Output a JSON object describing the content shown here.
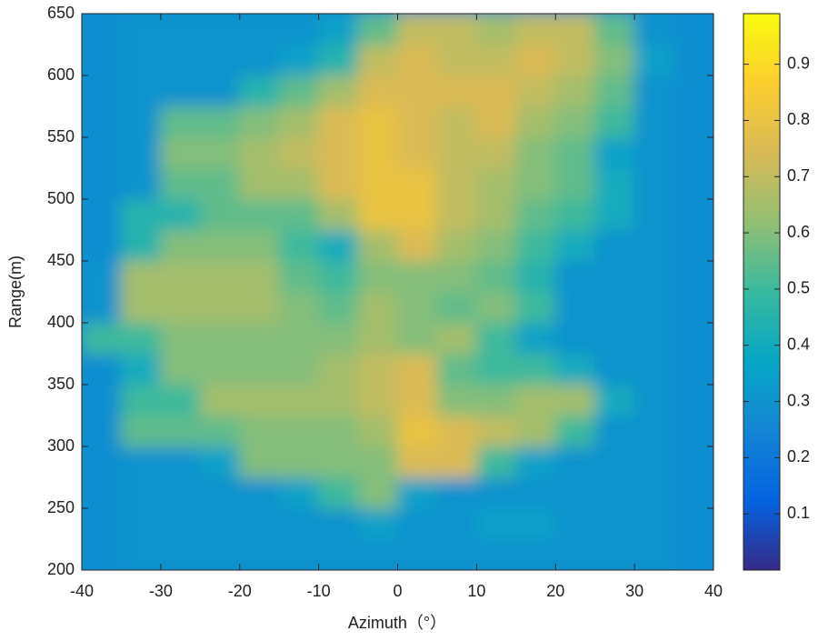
{
  "chart_data": {
    "type": "heatmap",
    "x_label": "Azimuth（°）",
    "y_label": "Range(m)",
    "xlim": [
      -40,
      40
    ],
    "ylim": [
      200,
      650
    ],
    "xticks": [
      -40,
      -30,
      -20,
      -10,
      0,
      10,
      20,
      30,
      40
    ],
    "yticks": [
      200,
      250,
      300,
      350,
      400,
      450,
      500,
      550,
      600,
      650
    ],
    "x": [
      -40,
      -35,
      -30,
      -25,
      -20,
      -15,
      -10,
      -5,
      0,
      5,
      10,
      15,
      20,
      25,
      30,
      35,
      40
    ],
    "y": [
      200,
      225,
      250,
      275,
      300,
      325,
      350,
      375,
      400,
      425,
      450,
      475,
      500,
      525,
      550,
      575,
      600,
      625,
      650
    ],
    "z": [
      [
        0.28,
        0.3,
        0.3,
        0.3,
        0.3,
        0.3,
        0.3,
        0.3,
        0.3,
        0.3,
        0.3,
        0.3,
        0.3,
        0.3,
        0.3,
        0.28
      ],
      [
        0.28,
        0.3,
        0.3,
        0.3,
        0.3,
        0.3,
        0.3,
        0.35,
        0.3,
        0.3,
        0.35,
        0.35,
        0.3,
        0.3,
        0.3,
        0.28
      ],
      [
        0.28,
        0.3,
        0.3,
        0.3,
        0.3,
        0.35,
        0.5,
        0.6,
        0.35,
        0.3,
        0.3,
        0.3,
        0.3,
        0.3,
        0.3,
        0.28
      ],
      [
        0.28,
        0.3,
        0.3,
        0.35,
        0.6,
        0.6,
        0.6,
        0.6,
        0.75,
        0.75,
        0.5,
        0.35,
        0.3,
        0.3,
        0.3,
        0.28
      ],
      [
        0.28,
        0.55,
        0.55,
        0.55,
        0.6,
        0.6,
        0.6,
        0.65,
        0.8,
        0.75,
        0.7,
        0.65,
        0.5,
        0.3,
        0.3,
        0.28
      ],
      [
        0.28,
        0.5,
        0.5,
        0.65,
        0.65,
        0.65,
        0.65,
        0.7,
        0.75,
        0.6,
        0.6,
        0.65,
        0.65,
        0.4,
        0.3,
        0.28
      ],
      [
        0.28,
        0.4,
        0.6,
        0.6,
        0.6,
        0.6,
        0.65,
        0.7,
        0.75,
        0.55,
        0.5,
        0.5,
        0.4,
        0.3,
        0.3,
        0.28
      ],
      [
        0.5,
        0.5,
        0.6,
        0.6,
        0.6,
        0.6,
        0.6,
        0.65,
        0.6,
        0.65,
        0.5,
        0.35,
        0.3,
        0.3,
        0.3,
        0.28
      ],
      [
        0.3,
        0.65,
        0.65,
        0.65,
        0.65,
        0.6,
        0.55,
        0.65,
        0.6,
        0.55,
        0.6,
        0.5,
        0.3,
        0.3,
        0.3,
        0.28
      ],
      [
        0.3,
        0.65,
        0.65,
        0.65,
        0.65,
        0.55,
        0.5,
        0.6,
        0.6,
        0.6,
        0.55,
        0.45,
        0.3,
        0.3,
        0.3,
        0.28
      ],
      [
        0.28,
        0.45,
        0.6,
        0.6,
        0.6,
        0.5,
        0.4,
        0.65,
        0.75,
        0.65,
        0.6,
        0.5,
        0.4,
        0.3,
        0.3,
        0.28
      ],
      [
        0.28,
        0.45,
        0.45,
        0.55,
        0.55,
        0.55,
        0.65,
        0.8,
        0.8,
        0.7,
        0.65,
        0.55,
        0.5,
        0.4,
        0.3,
        0.28
      ],
      [
        0.28,
        0.3,
        0.55,
        0.55,
        0.65,
        0.65,
        0.75,
        0.8,
        0.8,
        0.7,
        0.65,
        0.6,
        0.55,
        0.4,
        0.3,
        0.28
      ],
      [
        0.28,
        0.3,
        0.6,
        0.6,
        0.65,
        0.7,
        0.75,
        0.8,
        0.75,
        0.7,
        0.7,
        0.6,
        0.55,
        0.35,
        0.3,
        0.28
      ],
      [
        0.28,
        0.3,
        0.55,
        0.55,
        0.6,
        0.65,
        0.75,
        0.8,
        0.75,
        0.7,
        0.75,
        0.65,
        0.6,
        0.5,
        0.3,
        0.28
      ],
      [
        0.28,
        0.3,
        0.3,
        0.3,
        0.45,
        0.55,
        0.65,
        0.75,
        0.75,
        0.75,
        0.75,
        0.7,
        0.65,
        0.55,
        0.3,
        0.28
      ],
      [
        0.28,
        0.3,
        0.3,
        0.3,
        0.3,
        0.35,
        0.45,
        0.7,
        0.75,
        0.7,
        0.7,
        0.75,
        0.7,
        0.6,
        0.35,
        0.28
      ],
      [
        0.28,
        0.3,
        0.3,
        0.3,
        0.3,
        0.3,
        0.35,
        0.55,
        0.7,
        0.7,
        0.65,
        0.7,
        0.7,
        0.55,
        0.3,
        0.28
      ]
    ],
    "clim": [
      0,
      0.99
    ],
    "cticks": [
      0.1,
      0.2,
      0.3,
      0.4,
      0.5,
      0.6,
      0.7,
      0.8,
      0.9
    ],
    "colormap": [
      "#352a87",
      "#0363e1",
      "#1485d4",
      "#06a7c6",
      "#38b99e",
      "#92bf73",
      "#d9ba56",
      "#fcce2e",
      "#f9fb0e"
    ]
  }
}
